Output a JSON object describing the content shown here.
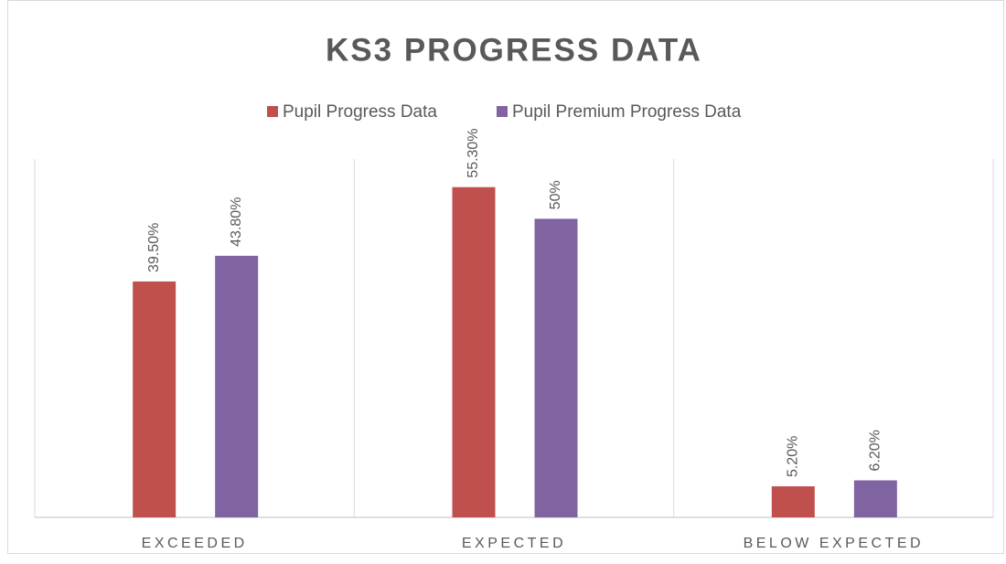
{
  "chart_data": {
    "type": "bar",
    "title": "KS3 PROGRESS DATA",
    "categories": [
      "EXCEEDED",
      "EXPECTED",
      "BELOW EXPECTED"
    ],
    "series": [
      {
        "name": "Pupil Progress Data",
        "color": "#c0504d",
        "values": [
          39.5,
          55.3,
          5.2
        ],
        "value_labels": [
          "39.50%",
          "55.30%",
          "5.20%"
        ]
      },
      {
        "name": "Pupil Premium Progress Data",
        "color": "#8064a2",
        "values": [
          43.8,
          50,
          6.2
        ],
        "value_labels": [
          "43.80%",
          "50%",
          "6.20%"
        ]
      }
    ],
    "ylim": [
      0,
      60
    ],
    "legend": "top"
  }
}
